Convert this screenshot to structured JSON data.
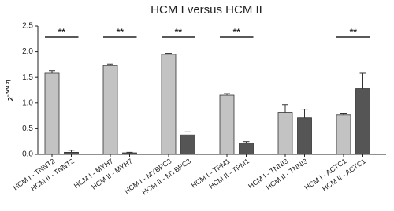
{
  "chart_data": {
    "type": "bar",
    "title": "HCM I versus HCM II",
    "ylabel": {
      "base": "2",
      "exponent": "-ΔΔCq"
    },
    "categories": [
      "HCM I - TNNT2",
      "HCM II - TNNT2",
      "HCM I - MYH7",
      "HCM II - MYH7",
      "HCM I - MYBPC3",
      "HCM II - MYBPC3",
      "HCM I - TPM1",
      "HCM II - TPM1",
      "HCM I - TNNI3",
      "HCM II - TNNI3",
      "HCM I - ACTC1",
      "HCM II - ACTC1"
    ],
    "values": [
      1.58,
      0.04,
      1.73,
      0.03,
      1.95,
      0.38,
      1.15,
      0.22,
      0.82,
      0.71,
      0.77,
      1.28
    ],
    "errors": [
      0.05,
      0.04,
      0.03,
      0.01,
      0.02,
      0.07,
      0.03,
      0.03,
      0.15,
      0.17,
      0.02,
      0.3
    ],
    "colors": [
      "#c3c3c3",
      "#555555",
      "#c3c3c3",
      "#555555",
      "#c3c3c3",
      "#555555",
      "#c3c3c3",
      "#555555",
      "#c3c3c3",
      "#555555",
      "#c3c3c3",
      "#555555"
    ],
    "significance": [
      "**",
      "**",
      "**",
      "**",
      null,
      "**"
    ],
    "ylim": [
      0,
      2.5
    ],
    "yticks": [
      {
        "value": 0,
        "label": "0.0"
      },
      0.5,
      {
        "value": 1,
        "label": "1.0"
      },
      1.5,
      {
        "value": 2,
        "label": "2.0"
      },
      2.5
    ]
  }
}
